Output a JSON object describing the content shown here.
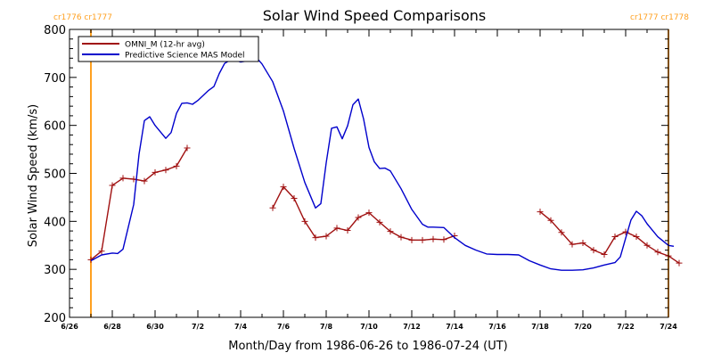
{
  "chart_data": {
    "type": "line",
    "title": "Solar Wind Speed Comparisons",
    "xlabel": "Month/Day from 1986-06-26 to 1986-07-24 (UT)",
    "ylabel": "Solar Wind Speed (km/s)",
    "xlim": [
      "1986-06-26",
      "1986-07-24"
    ],
    "ylim": [
      200,
      800
    ],
    "x_ticks": [
      {
        "date": "1986-06-26T00:00",
        "label": "6/26"
      },
      {
        "date": "1986-06-28T00:00",
        "label": "6/28"
      },
      {
        "date": "1986-06-30T00:00",
        "label": "6/30"
      },
      {
        "date": "1986-07-02T00:00",
        "label": "7/2"
      },
      {
        "date": "1986-07-04T00:00",
        "label": "7/4"
      },
      {
        "date": "1986-07-06T00:00",
        "label": "7/6"
      },
      {
        "date": "1986-07-08T00:00",
        "label": "7/8"
      },
      {
        "date": "1986-07-10T00:00",
        "label": "7/10"
      },
      {
        "date": "1986-07-12T00:00",
        "label": "7/12"
      },
      {
        "date": "1986-07-14T00:00",
        "label": "7/14"
      },
      {
        "date": "1986-07-16T00:00",
        "label": "7/16"
      },
      {
        "date": "1986-07-18T00:00",
        "label": "7/18"
      },
      {
        "date": "1986-07-20T00:00",
        "label": "7/20"
      },
      {
        "date": "1986-07-22T00:00",
        "label": "7/22"
      },
      {
        "date": "1986-07-24T00:00",
        "label": "7/24"
      }
    ],
    "y_ticks": [
      200,
      300,
      400,
      500,
      600,
      700,
      800
    ],
    "grid": false,
    "legend_position": "top-left",
    "colors": {
      "omni": "#a01010",
      "model": "#0000cc",
      "boundary": "#ffa020",
      "axis": "#000000"
    },
    "carrington_markers": [
      {
        "date": "1986-06-27T00:00",
        "label": "cr1776 cr1777",
        "label_side": "left"
      },
      {
        "date": "1986-07-24T00:00",
        "label": "cr1777 cr1778",
        "label_side": "right"
      }
    ],
    "series": [
      {
        "name": "OMNI_M (12-hr avg)",
        "style": "line-plus",
        "color": "#a01010",
        "segments": [
          [
            [
              "1986-06-27T00:00",
              320
            ],
            [
              "1986-06-27T12:00",
              338
            ],
            [
              "1986-06-28T00:00",
              475
            ],
            [
              "1986-06-28T12:00",
              490
            ],
            [
              "1986-06-29T00:00",
              488
            ],
            [
              "1986-06-29T12:00",
              484
            ],
            [
              "1986-06-30T00:00",
              502
            ],
            [
              "1986-06-30T12:00",
              507
            ],
            [
              "1986-07-01T00:00",
              515
            ],
            [
              "1986-07-01T12:00",
              553
            ]
          ],
          [
            [
              "1986-07-05T12:00",
              428
            ],
            [
              "1986-07-06T00:00",
              472
            ],
            [
              "1986-07-06T12:00",
              448
            ],
            [
              "1986-07-07T00:00",
              400
            ],
            [
              "1986-07-07T12:00",
              366
            ],
            [
              "1986-07-08T00:00",
              369
            ],
            [
              "1986-07-08T12:00",
              386
            ],
            [
              "1986-07-09T00:00",
              381
            ],
            [
              "1986-07-09T12:00",
              408
            ],
            [
              "1986-07-10T00:00",
              418
            ],
            [
              "1986-07-10T12:00",
              398
            ],
            [
              "1986-07-11T00:00",
              379
            ],
            [
              "1986-07-11T12:00",
              367
            ],
            [
              "1986-07-12T00:00",
              361
            ],
            [
              "1986-07-12T12:00",
              361
            ],
            [
              "1986-07-13T00:00",
              363
            ],
            [
              "1986-07-13T12:00",
              362
            ],
            [
              "1986-07-14T00:00",
              370
            ]
          ],
          [
            [
              "1986-07-18T00:00",
              420
            ],
            [
              "1986-07-18T12:00",
              402
            ],
            [
              "1986-07-19T00:00",
              377
            ],
            [
              "1986-07-19T12:00",
              352
            ],
            [
              "1986-07-20T00:00",
              355
            ],
            [
              "1986-07-20T12:00",
              340
            ],
            [
              "1986-07-21T00:00",
              331
            ],
            [
              "1986-07-21T12:00",
              368
            ],
            [
              "1986-07-22T00:00",
              378
            ],
            [
              "1986-07-22T12:00",
              368
            ],
            [
              "1986-07-23T00:00",
              350
            ],
            [
              "1986-07-23T12:00",
              336
            ],
            [
              "1986-07-24T00:00",
              328
            ],
            [
              "1986-07-24T12:00",
              313
            ]
          ]
        ]
      },
      {
        "name": "Predictive Science MAS Model",
        "style": "line",
        "color": "#0000cc",
        "segments": [
          [
            [
              "1986-06-27T00:00",
              318
            ],
            [
              "1986-06-27T12:00",
              330
            ],
            [
              "1986-06-28T00:00",
              334
            ],
            [
              "1986-06-28T06:00",
              333
            ],
            [
              "1986-06-28T12:00",
              342
            ],
            [
              "1986-06-29T00:00",
              435
            ],
            [
              "1986-06-29T06:00",
              540
            ],
            [
              "1986-06-29T12:00",
              610
            ],
            [
              "1986-06-29T18:00",
              618
            ],
            [
              "1986-06-30T00:00",
              600
            ],
            [
              "1986-06-30T12:00",
              573
            ],
            [
              "1986-06-30T18:00",
              585
            ],
            [
              "1986-07-01T00:00",
              625
            ],
            [
              "1986-07-01T06:00",
              646
            ],
            [
              "1986-07-01T12:00",
              647
            ],
            [
              "1986-07-01T18:00",
              644
            ],
            [
              "1986-07-02T00:00",
              652
            ],
            [
              "1986-07-02T12:00",
              673
            ],
            [
              "1986-07-02T18:00",
              681
            ],
            [
              "1986-07-03T00:00",
              708
            ],
            [
              "1986-07-03T06:00",
              729
            ],
            [
              "1986-07-03T12:00",
              736
            ],
            [
              "1986-07-03T18:00",
              736
            ],
            [
              "1986-07-04T00:00",
              732
            ],
            [
              "1986-07-04T06:00",
              734
            ],
            [
              "1986-07-04T12:00",
              743
            ],
            [
              "1986-07-04T18:00",
              741
            ],
            [
              "1986-07-05T00:00",
              728
            ],
            [
              "1986-07-05T12:00",
              691
            ],
            [
              "1986-07-06T00:00",
              630
            ],
            [
              "1986-07-06T12:00",
              552
            ],
            [
              "1986-07-07T00:00",
              481
            ],
            [
              "1986-07-07T12:00",
              428
            ],
            [
              "1986-07-07T18:00",
              437
            ],
            [
              "1986-07-08T00:00",
              522
            ],
            [
              "1986-07-08T06:00",
              594
            ],
            [
              "1986-07-08T12:00",
              597
            ],
            [
              "1986-07-08T18:00",
              572
            ],
            [
              "1986-07-09T00:00",
              599
            ],
            [
              "1986-07-09T06:00",
              643
            ],
            [
              "1986-07-09T12:00",
              655
            ],
            [
              "1986-07-09T18:00",
              613
            ],
            [
              "1986-07-10T00:00",
              554
            ],
            [
              "1986-07-10T06:00",
              524
            ],
            [
              "1986-07-10T12:00",
              510
            ],
            [
              "1986-07-10T18:00",
              511
            ],
            [
              "1986-07-11T00:00",
              505
            ],
            [
              "1986-07-11T12:00",
              468
            ],
            [
              "1986-07-12T00:00",
              425
            ],
            [
              "1986-07-12T12:00",
              394
            ],
            [
              "1986-07-12T18:00",
              388
            ],
            [
              "1986-07-13T00:00",
              388
            ],
            [
              "1986-07-13T12:00",
              387
            ],
            [
              "1986-07-14T00:00",
              366
            ],
            [
              "1986-07-14T12:00",
              350
            ],
            [
              "1986-07-15T00:00",
              340
            ],
            [
              "1986-07-15T12:00",
              332
            ],
            [
              "1986-07-16T00:00",
              331
            ],
            [
              "1986-07-16T12:00",
              331
            ],
            [
              "1986-07-17T00:00",
              330
            ],
            [
              "1986-07-17T12:00",
              318
            ],
            [
              "1986-07-18T00:00",
              309
            ],
            [
              "1986-07-18T12:00",
              301
            ],
            [
              "1986-07-19T00:00",
              298
            ],
            [
              "1986-07-19T12:00",
              298
            ],
            [
              "1986-07-20T00:00",
              299
            ],
            [
              "1986-07-20T12:00",
              303
            ],
            [
              "1986-07-21T00:00",
              309
            ],
            [
              "1986-07-21T12:00",
              314
            ],
            [
              "1986-07-21T18:00",
              326
            ],
            [
              "1986-07-22T00:00",
              365
            ],
            [
              "1986-07-22T06:00",
              403
            ],
            [
              "1986-07-22T12:00",
              421
            ],
            [
              "1986-07-22T18:00",
              412
            ],
            [
              "1986-07-23T00:00",
              395
            ],
            [
              "1986-07-23T12:00",
              368
            ],
            [
              "1986-07-24T00:00",
              350
            ],
            [
              "1986-07-24T06:00",
              348
            ]
          ]
        ]
      }
    ]
  }
}
